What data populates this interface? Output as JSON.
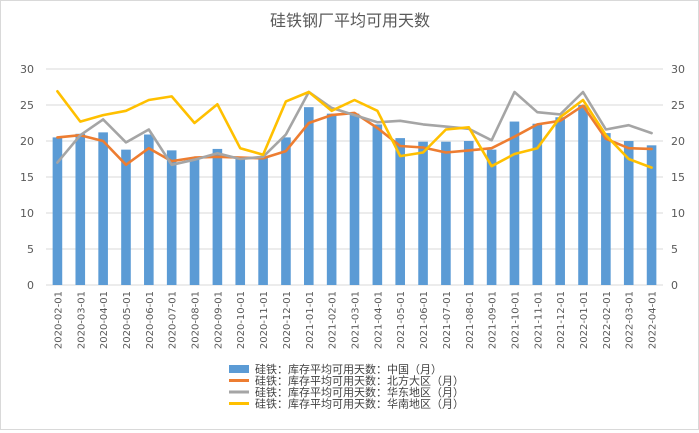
{
  "chart_data": {
    "type": "bar",
    "title": "硅铁钢厂平均可用天数",
    "categories": [
      "2020-02-01",
      "2020-03-01",
      "2020-04-01",
      "2020-05-01",
      "2020-06-01",
      "2020-07-01",
      "2020-08-01",
      "2020-09-01",
      "2020-10-01",
      "2020-11-01",
      "2020-12-01",
      "2021-01-01",
      "2021-02-01",
      "2021-03-01",
      "2021-04-01",
      "2021-05-01",
      "2021-06-01",
      "2021-07-01",
      "2021-08-01",
      "2021-09-01",
      "2021-10-01",
      "2021-11-01",
      "2021-12-01",
      "2022-01-01",
      "2022-02-01",
      "2022-03-01",
      "2022-04-01"
    ],
    "x_tick_labels": [
      "2020-02-01",
      "2020-03-01",
      "2020-04-01",
      "2020-05-01",
      "2020-06-01",
      "2020-07-01",
      "2020-08-01",
      "2020-09-01",
      "2020-10-01",
      "2020-11-01",
      "2020-12-01",
      "2021-01-01",
      "2021-02-01",
      "2021-03-01",
      "2021-04-01",
      "2021-05-01",
      "2021-06-01",
      "2021-07-01",
      "2021-08-01",
      "2021-09-01",
      "2021-10-01",
      "2021-11-01",
      "2021-12-01",
      "2022-01-01",
      "2022-02-01",
      "2022-03-01",
      "2022-04-01"
    ],
    "ylim": [
      0,
      30
    ],
    "yticks": [
      0,
      5,
      10,
      15,
      20,
      25,
      30
    ],
    "y_tick_labels_left": [
      "0",
      "5",
      "10",
      "15",
      "20",
      "25",
      "30"
    ],
    "y_tick_labels_right": [
      "0",
      "5",
      "10",
      "15",
      "20",
      "25",
      "30"
    ],
    "grid": true,
    "legend_position": "bottom",
    "series": [
      {
        "name": "硅铁：库存平均可用天数：中国（月）",
        "type": "bar",
        "color": "#5b9bd5",
        "values": [
          20.5,
          21.0,
          21.2,
          18.8,
          20.9,
          18.7,
          17.7,
          18.9,
          17.8,
          17.8,
          20.5,
          24.7,
          23.8,
          23.8,
          22.3,
          20.4,
          19.9,
          19.9,
          20.0,
          18.8,
          22.7,
          22.4,
          23.3,
          25.0,
          21.1,
          20.0,
          19.4
        ]
      },
      {
        "name": "硅铁：库存平均可用天数：北方大区（月）",
        "type": "line",
        "color": "#ed7d31",
        "values": [
          20.5,
          20.8,
          20.0,
          16.7,
          19.0,
          17.2,
          17.7,
          17.8,
          17.7,
          17.6,
          18.6,
          22.5,
          23.6,
          23.9,
          21.8,
          19.3,
          19.1,
          18.4,
          18.7,
          19.0,
          20.6,
          22.3,
          22.8,
          24.9,
          20.3,
          19.0,
          18.9
        ]
      },
      {
        "name": "硅铁：库存平均可用天数：华东地区（月）",
        "type": "line",
        "color": "#a5a5a5",
        "values": [
          17.0,
          20.8,
          23.0,
          19.8,
          21.6,
          16.7,
          17.4,
          18.3,
          17.5,
          17.8,
          20.9,
          26.8,
          24.6,
          23.6,
          22.6,
          22.8,
          22.3,
          22.0,
          21.7,
          20.1,
          26.8,
          24.0,
          23.7,
          26.8,
          21.6,
          22.2,
          21.1
        ]
      },
      {
        "name": "硅铁：库存平均可用天数：华南地区（月）",
        "type": "line",
        "color": "#ffc000",
        "values": [
          26.9,
          22.7,
          23.6,
          24.2,
          25.7,
          26.2,
          22.5,
          25.1,
          19.0,
          18.1,
          25.5,
          26.8,
          24.2,
          25.7,
          24.2,
          17.9,
          18.4,
          21.6,
          21.9,
          16.5,
          18.2,
          19.0,
          23.3,
          25.7,
          20.8,
          17.5,
          16.3
        ]
      }
    ]
  }
}
